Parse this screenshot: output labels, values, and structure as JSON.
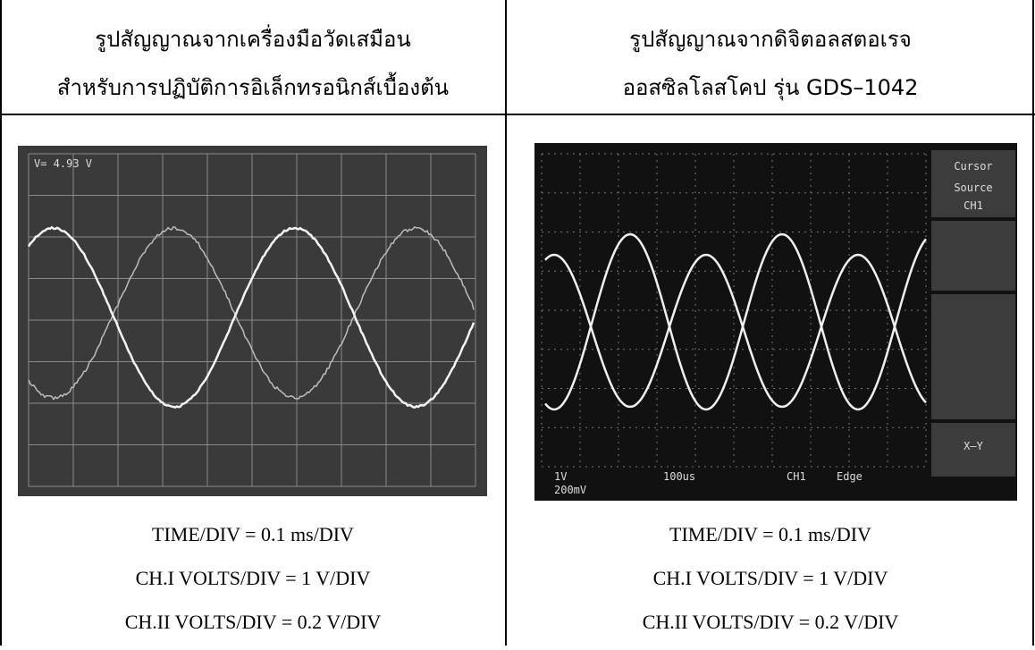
{
  "table": {
    "header": [
      {
        "lines": [
          "รูปสัญญาณจากเครื่องมือวัดเสมือน",
          "สำหรับการปฏิบัติการอิเล็กทรอนิกส์เบื้องต้น"
        ]
      },
      {
        "lines": [
          "รูปสัญญาณจากดิจิตอลสตอเรจ",
          "ออสซิลโลสโคป รุ่น GDS–1042"
        ]
      }
    ],
    "left_screen": {
      "readout": "V= 4.93 V"
    },
    "right_screen": {
      "menu": [
        "Cursor",
        "Source",
        "CH1",
        "X–Y"
      ],
      "status": [
        "1V",
        "200mV",
        "100us",
        "CH1",
        "Edge"
      ]
    },
    "captions": [
      [
        "TIME/DIV = 0.1 ms/DIV",
        "CH.I VOLTS/DIV = 1 V/DIV",
        "CH.II VOLTS/DIV = 0.2 V/DIV"
      ],
      [
        "TIME/DIV = 0.1 ms/DIV",
        "CH.I VOLTS/DIV = 1 V/DIV",
        "CH.II VOLTS/DIV = 0.2 V/DIV"
      ]
    ]
  }
}
